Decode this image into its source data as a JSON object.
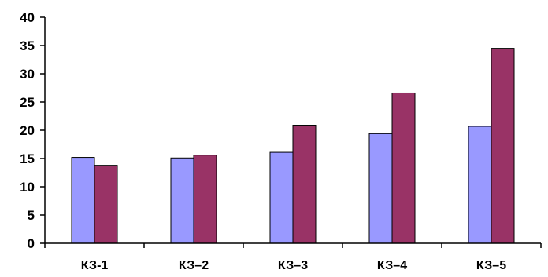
{
  "chart_data": {
    "type": "bar",
    "categories": [
      "КЗ-1",
      "КЗ–2",
      "КЗ–3",
      "КЗ–4",
      "КЗ–5"
    ],
    "series": [
      {
        "values": [
          15.2,
          15.1,
          16.1,
          19.4,
          20.7
        ],
        "color": "#9999ff"
      },
      {
        "values": [
          13.8,
          15.6,
          20.9,
          26.6,
          34.5
        ],
        "color": "#993366"
      }
    ],
    "yticks": [
      "0",
      "5",
      "10",
      "15",
      "20",
      "25",
      "30",
      "35",
      "40"
    ],
    "ylim": [
      0,
      40
    ],
    "grid": false,
    "legend": "none",
    "title": "",
    "xlabel": "",
    "ylabel": ""
  }
}
